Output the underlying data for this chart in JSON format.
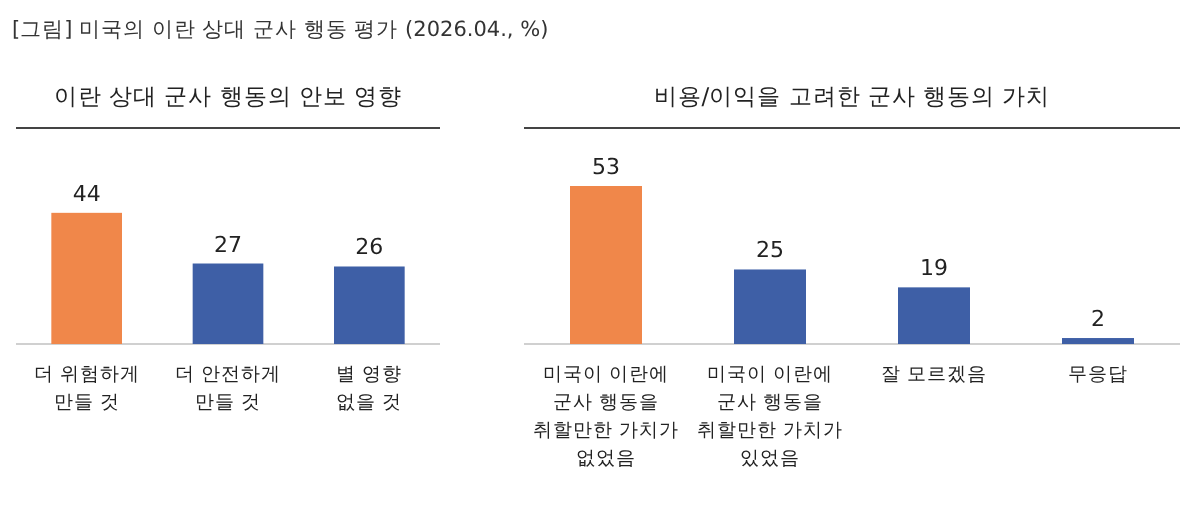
{
  "chart_data": [
    {
      "type": "bar",
      "title": "이란 상대 군사 행동의 안보 영향",
      "annotations": [
        "[그림] 미국의 이란 상대 군사 행동 평가 (2026.04., %)"
      ],
      "categories": [
        "더 위험하게\n만들 것",
        "더 안전하게\n만들 것",
        "별 영향\n없을 것"
      ],
      "values": [
        44,
        27,
        26
      ],
      "colors": [
        "#f0874a",
        "#3e5fa6",
        "#3e5fa6"
      ],
      "data_labels": true
    },
    {
      "type": "bar",
      "title": "비용/이익을 고려한 군사 행동의 가치",
      "categories": [
        "미국이 이란에\n군사 행동을\n취할만한 가치가\n없었음",
        "미국이 이란에\n군사 행동을\n취할만한 가치가\n있었음",
        "잘 모르겠음",
        "무응답"
      ],
      "values": [
        53,
        25,
        19,
        2
      ],
      "colors": [
        "#f0874a",
        "#3e5fa6",
        "#3e5fa6",
        "#3e5fa6"
      ],
      "data_labels": true
    }
  ]
}
